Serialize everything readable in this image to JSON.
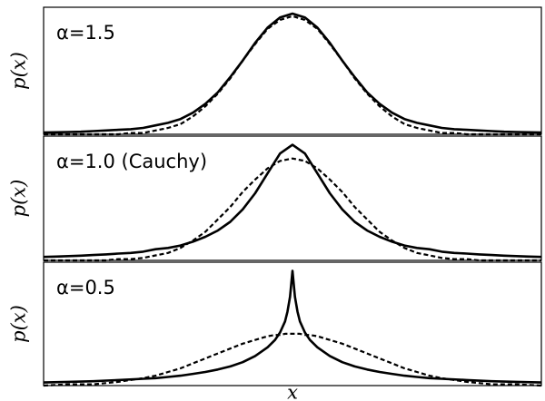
{
  "chart_data": [
    {
      "type": "line",
      "title": "α=1.5",
      "y_label": "p(x)",
      "xlim": [
        -5,
        5
      ],
      "ylim": [
        0,
        1
      ],
      "x": [
        -5,
        -4.75,
        -4.5,
        -4.25,
        -4,
        -3.75,
        -3.5,
        -3.25,
        -3,
        -2.75,
        -2.5,
        -2.25,
        -2,
        -1.75,
        -1.5,
        -1.25,
        -1,
        -0.75,
        -0.5,
        -0.25,
        0,
        0.25,
        0.5,
        0.75,
        1,
        1.25,
        1.5,
        1.75,
        2,
        2.25,
        2.5,
        2.75,
        3,
        3.25,
        3.5,
        3.75,
        4,
        4.25,
        4.5,
        4.75,
        5
      ],
      "series": [
        {
          "color": "#000000",
          "dashed": false,
          "values": [
            0.014,
            0.016,
            0.018,
            0.02,
            0.025,
            0.03,
            0.035,
            0.04,
            0.05,
            0.07,
            0.09,
            0.12,
            0.17,
            0.24,
            0.33,
            0.45,
            0.58,
            0.72,
            0.84,
            0.92,
            0.95,
            0.92,
            0.84,
            0.72,
            0.58,
            0.45,
            0.33,
            0.24,
            0.17,
            0.12,
            0.09,
            0.07,
            0.05,
            0.04,
            0.035,
            0.03,
            0.025,
            0.02,
            0.018,
            0.016,
            0.014
          ]
        },
        {
          "color": "#000000",
          "dashed": true,
          "values": [
            0,
            0,
            0,
            0,
            0,
            0,
            0,
            0.01,
            0.01,
            0.03,
            0.05,
            0.08,
            0.14,
            0.22,
            0.32,
            0.44,
            0.58,
            0.71,
            0.83,
            0.9,
            0.93,
            0.9,
            0.83,
            0.71,
            0.58,
            0.44,
            0.32,
            0.22,
            0.14,
            0.08,
            0.05,
            0.03,
            0.01,
            0.01,
            0,
            0,
            0,
            0,
            0,
            0,
            0
          ]
        }
      ]
    },
    {
      "type": "line",
      "title": "α=1.0 (Cauchy)",
      "y_label": "p(x)",
      "xlim": [
        -5,
        5
      ],
      "ylim": [
        0,
        1
      ],
      "x": [
        -5,
        -4.75,
        -4.5,
        -4.25,
        -4,
        -3.75,
        -3.5,
        -3.25,
        -3,
        -2.75,
        -2.5,
        -2.25,
        -2,
        -1.75,
        -1.5,
        -1.25,
        -1,
        -0.75,
        -0.5,
        -0.25,
        0,
        0.25,
        0.5,
        0.75,
        1,
        1.25,
        1.5,
        1.75,
        2,
        2.25,
        2.5,
        2.75,
        3,
        3.25,
        3.5,
        3.75,
        4,
        4.25,
        4.5,
        4.75,
        5
      ],
      "series": [
        {
          "color": "#000000",
          "dashed": false,
          "values": [
            0.028,
            0.031,
            0.034,
            0.038,
            0.043,
            0.048,
            0.055,
            0.06,
            0.07,
            0.09,
            0.1,
            0.12,
            0.15,
            0.19,
            0.24,
            0.31,
            0.41,
            0.54,
            0.7,
            0.86,
            0.93,
            0.86,
            0.7,
            0.54,
            0.41,
            0.31,
            0.24,
            0.19,
            0.15,
            0.12,
            0.1,
            0.09,
            0.07,
            0.06,
            0.055,
            0.048,
            0.043,
            0.038,
            0.034,
            0.031,
            0.028
          ]
        },
        {
          "color": "#000000",
          "dashed": true,
          "values": [
            0,
            0,
            0,
            0,
            0,
            0,
            0.01,
            0.01,
            0.02,
            0.04,
            0.06,
            0.1,
            0.16,
            0.23,
            0.33,
            0.43,
            0.55,
            0.65,
            0.74,
            0.8,
            0.82,
            0.8,
            0.74,
            0.65,
            0.55,
            0.43,
            0.33,
            0.23,
            0.16,
            0.1,
            0.06,
            0.04,
            0.02,
            0.01,
            0.01,
            0,
            0,
            0,
            0,
            0,
            0
          ]
        }
      ]
    },
    {
      "type": "line",
      "title": "α=0.5",
      "y_label": "p(x)",
      "x_label": "x",
      "xlim": [
        -5,
        5
      ],
      "ylim": [
        0,
        1
      ],
      "x": [
        -5,
        -4.5,
        -4,
        -3.5,
        -3,
        -2.75,
        -2.5,
        -2.25,
        -2,
        -1.75,
        -1.5,
        -1.25,
        -1,
        -0.75,
        -0.5,
        -0.35,
        -0.25,
        -0.15,
        -0.1,
        -0.05,
        0,
        0.05,
        0.1,
        0.15,
        0.25,
        0.35,
        0.5,
        0.75,
        1,
        1.25,
        1.5,
        1.75,
        2,
        2.25,
        2.5,
        2.75,
        3,
        3.5,
        4,
        4.5,
        5
      ],
      "series": [
        {
          "color": "#000000",
          "dashed": false,
          "values": [
            0.025,
            0.03,
            0.035,
            0.045,
            0.055,
            0.06,
            0.07,
            0.08,
            0.095,
            0.11,
            0.13,
            0.155,
            0.19,
            0.24,
            0.31,
            0.37,
            0.43,
            0.52,
            0.6,
            0.72,
            0.93,
            0.72,
            0.6,
            0.52,
            0.43,
            0.37,
            0.31,
            0.24,
            0.19,
            0.155,
            0.13,
            0.11,
            0.095,
            0.08,
            0.07,
            0.06,
            0.055,
            0.045,
            0.035,
            0.03,
            0.025
          ]
        },
        {
          "color": "#000000",
          "dashed": true,
          "values": [
            0,
            0.01,
            0.01,
            0.03,
            0.06,
            0.08,
            0.11,
            0.14,
            0.18,
            0.22,
            0.26,
            0.3,
            0.34,
            0.37,
            0.4,
            0.41,
            0.41,
            0.42,
            0.42,
            0.42,
            0.42,
            0.42,
            0.42,
            0.42,
            0.41,
            0.41,
            0.4,
            0.37,
            0.34,
            0.3,
            0.26,
            0.22,
            0.18,
            0.14,
            0.11,
            0.08,
            0.06,
            0.03,
            0.01,
            0.01,
            0
          ]
        }
      ]
    }
  ]
}
